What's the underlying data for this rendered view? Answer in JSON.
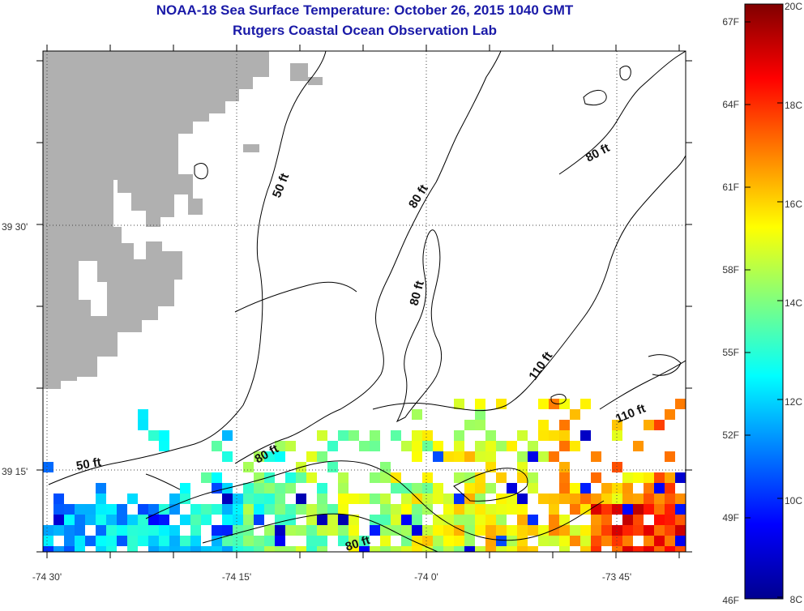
{
  "title": "NOAA-18 Sea Surface Temperature:  October 26, 2015 1040 GMT",
  "subtitle": "Rutgers Coastal Ocean Observation Lab",
  "map": {
    "x_tick_labels": [
      "-74 30'",
      "-74 15'",
      "-74 0'",
      "-73 45'"
    ],
    "y_tick_labels": [
      "39 30'",
      "39 15'"
    ],
    "contour_labels": [
      "50 ft",
      "80 ft",
      "80 ft",
      "80 ft",
      "110 ft",
      "110 ft",
      "50 ft",
      "80 ft",
      "80 ft"
    ],
    "colors": {
      "land": "#b0b0b0",
      "frame": "#000000",
      "grid": "#444444"
    }
  },
  "colorbar": {
    "fahrenheit_labels": [
      "67F",
      "64F",
      "61F",
      "58F",
      "55F",
      "52F",
      "49F",
      "46F"
    ],
    "celsius_labels": [
      "20C",
      "18C",
      "16C",
      "14C",
      "12C",
      "10C",
      "8C"
    ],
    "range_c": [
      8,
      20
    ],
    "colormap": "jet"
  }
}
